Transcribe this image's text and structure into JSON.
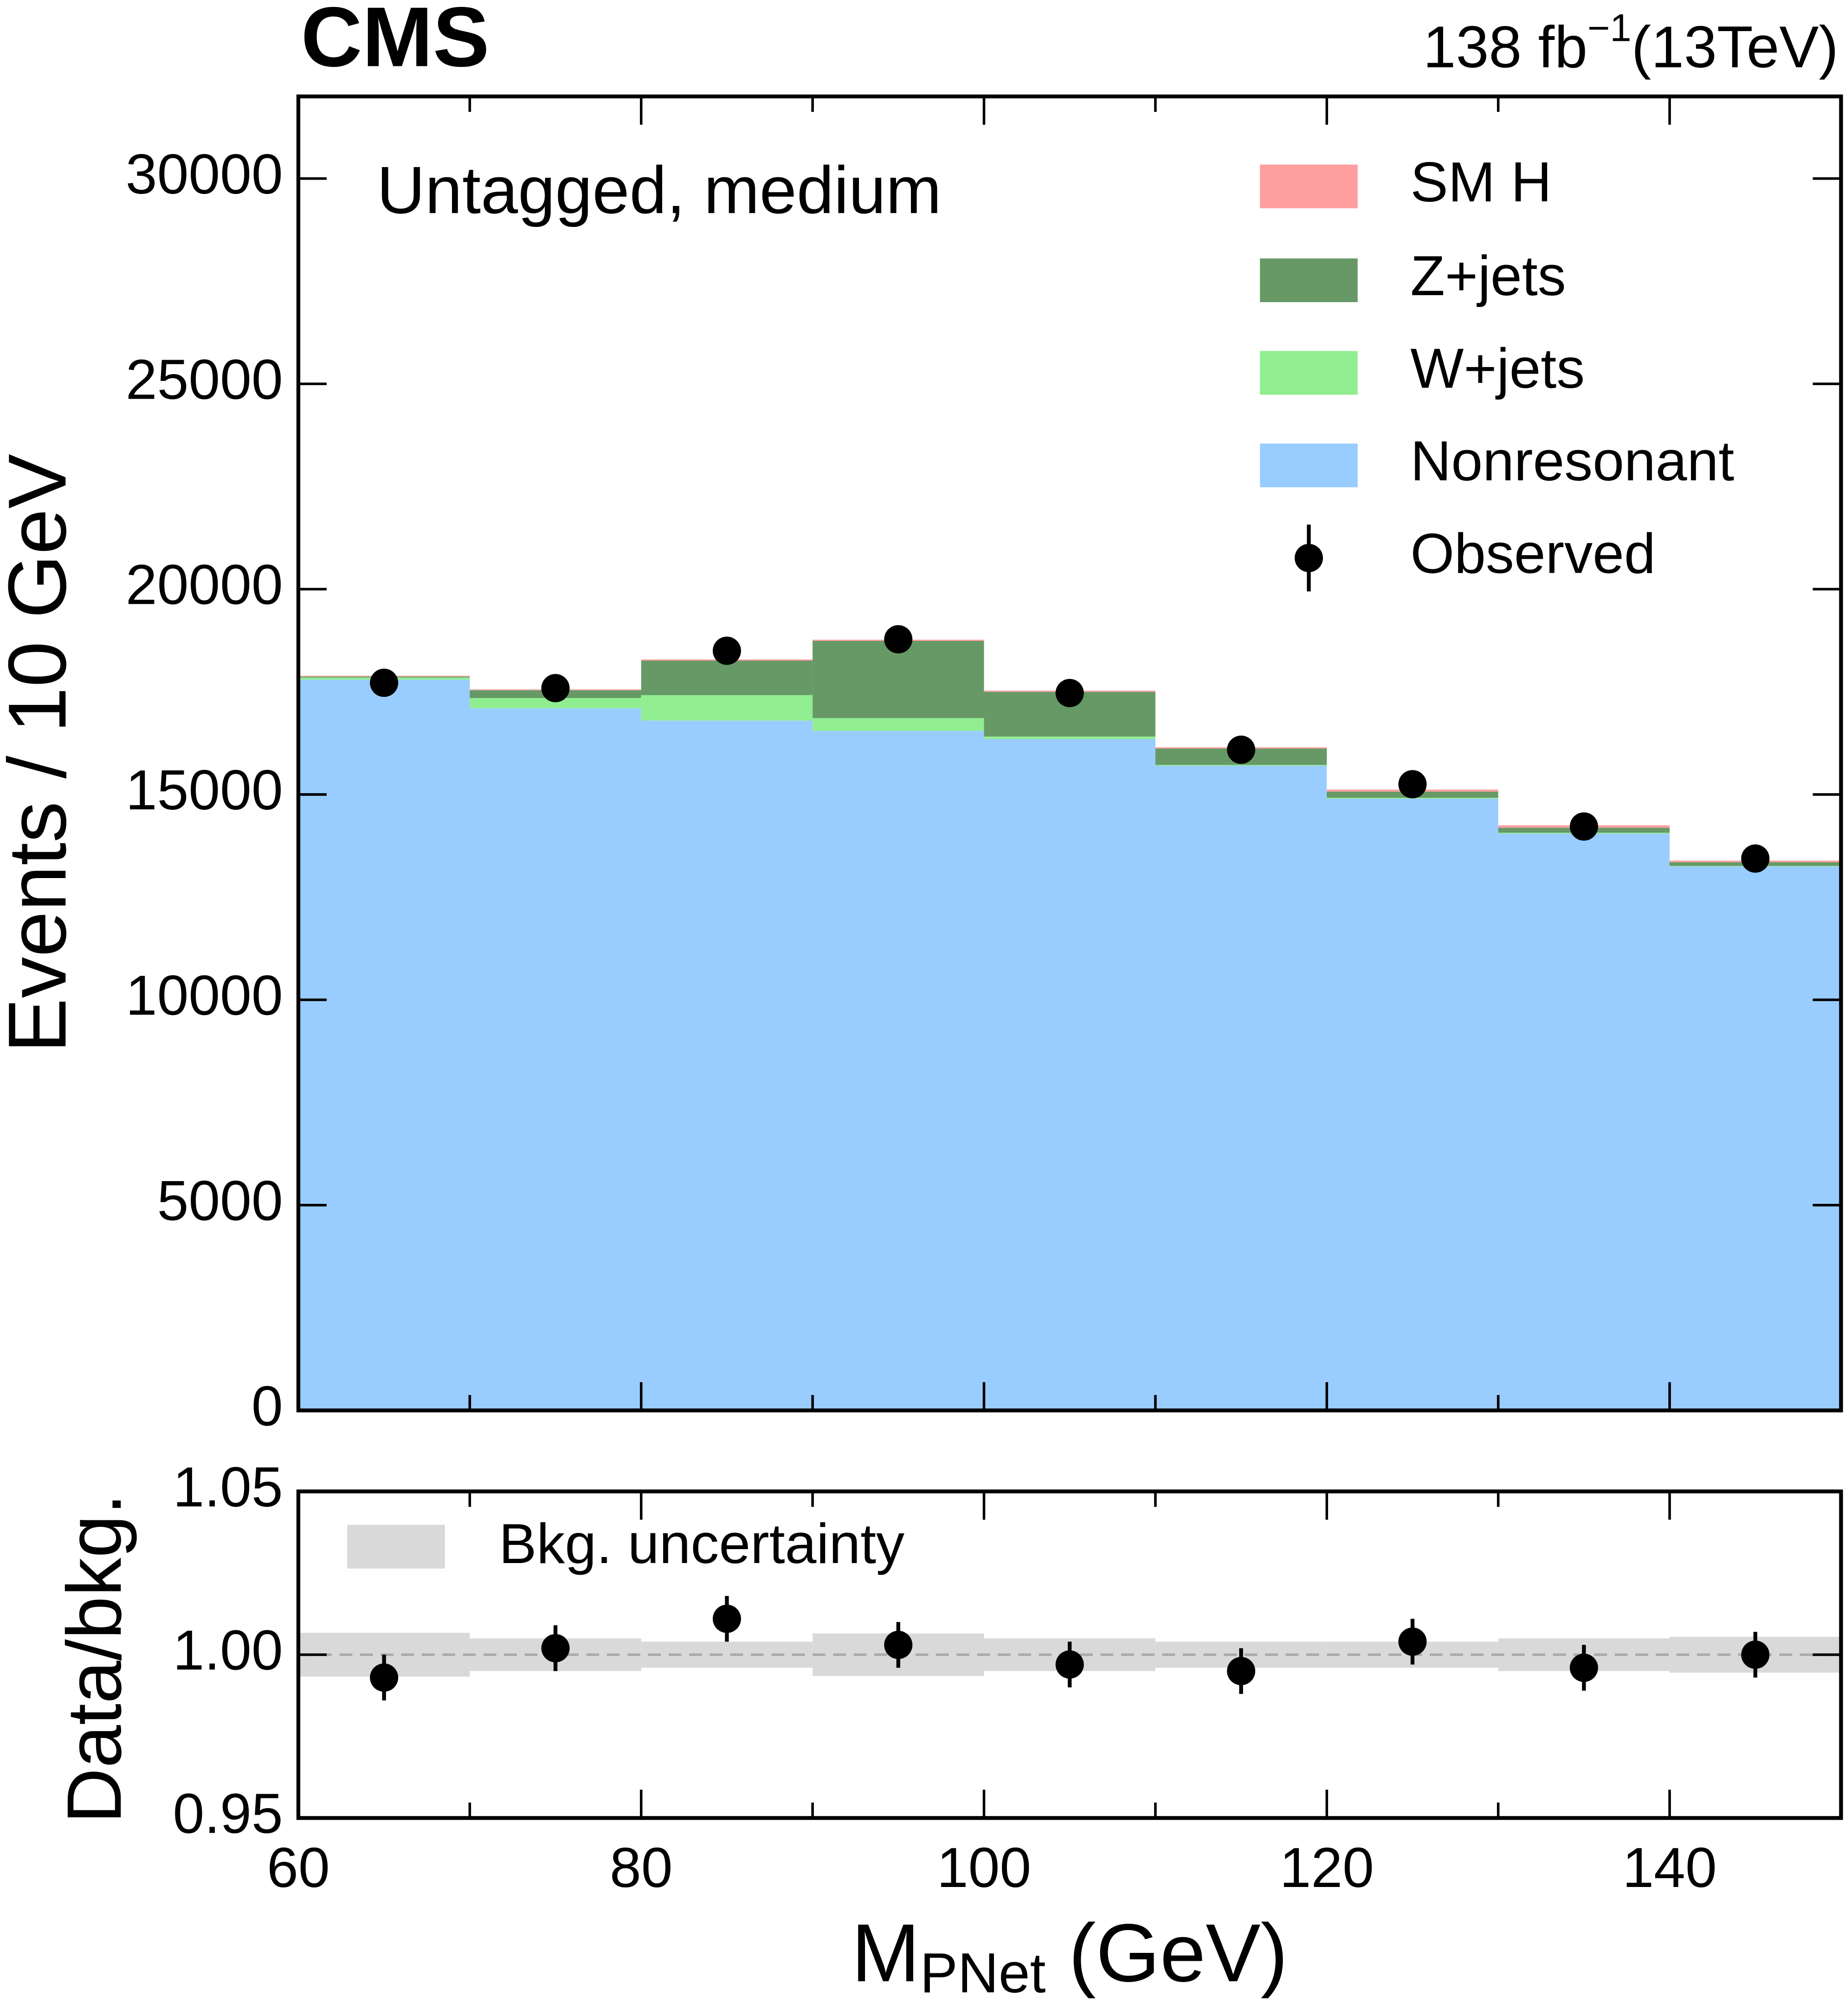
{
  "chart_data": [
    {
      "type": "stacked-histogram",
      "experiment": "CMS",
      "lumi": {
        "text": "138 fb",
        "sup": "−1",
        "energy": "(13TeV)"
      },
      "annotation": "Untagged, medium",
      "ylabel": "Events / 10 GeV",
      "bins": [
        60,
        70,
        80,
        90,
        100,
        110,
        120,
        130,
        140,
        150
      ],
      "series": [
        {
          "name": "SM H",
          "color": "#ff9e9e",
          "values": [
            20,
            20,
            30,
            30,
            30,
            30,
            50,
            60,
            40
          ]
        },
        {
          "name": "Z+jets",
          "color": "#669966",
          "values": [
            20,
            190,
            840,
            1880,
            1090,
            400,
            150,
            120,
            90
          ]
        },
        {
          "name": "W+jets",
          "color": "#90ee90",
          "values": [
            50,
            250,
            620,
            310,
            60,
            20,
            20,
            20,
            10
          ]
        },
        {
          "name": "Nonresonant",
          "color": "#99ccff",
          "values": [
            17800,
            17100,
            16800,
            16550,
            16350,
            15700,
            14900,
            14050,
            13250
          ]
        }
      ],
      "observed": {
        "name": "Observed",
        "color": "#000000",
        "x": [
          65,
          75,
          85,
          95,
          105,
          115,
          125,
          135,
          145
        ],
        "values": [
          17720,
          17590,
          18500,
          18780,
          17470,
          16090,
          15250,
          14220,
          13440
        ]
      },
      "xlim": [
        60,
        150
      ],
      "ylim": [
        0,
        32000
      ],
      "yticks": [
        0,
        5000,
        10000,
        15000,
        20000,
        25000,
        30000
      ]
    },
    {
      "type": "ratio",
      "ylabel": "Data/bkg.",
      "xlabel": {
        "main": "M",
        "sub": "PNet",
        "unit": " (GeV)"
      },
      "band": {
        "name": "Bkg. uncertainty",
        "color": "#d9d9d9",
        "errors": [
          0.0067,
          0.005,
          0.004,
          0.0065,
          0.005,
          0.004,
          0.004,
          0.005,
          0.0055
        ]
      },
      "x": [
        65,
        75,
        85,
        95,
        105,
        115,
        125,
        135,
        145
      ],
      "values": [
        0.993,
        1.002,
        1.011,
        1.003,
        0.997,
        0.995,
        1.004,
        0.996,
        1.0
      ],
      "errors": [
        0.007,
        0.007,
        0.007,
        0.007,
        0.007,
        0.007,
        0.007,
        0.007,
        0.007
      ],
      "xlim": [
        60,
        150
      ],
      "xticks": [
        60,
        80,
        100,
        120,
        140
      ],
      "ylim": [
        0.95,
        1.05
      ],
      "yticks": [
        0.95,
        {
          "value": 1.0,
          "label": "1.00"
        },
        1.05
      ]
    }
  ]
}
